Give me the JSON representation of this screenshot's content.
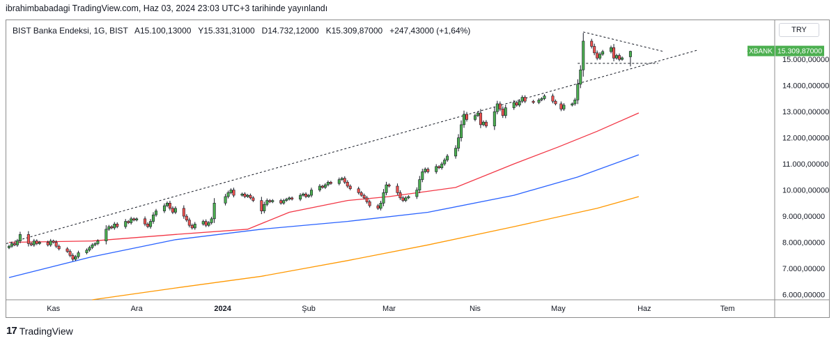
{
  "header": {
    "published_text": "ibrahimbabadagi TradingView.com, Haz 03, 2024 23:03 UTC+3 tarihinde yayınlandı"
  },
  "legend": {
    "symbol": "BIST Banka Endeksi, 1G, BIST",
    "open": "A15.100,13000",
    "high": "Y15.331,31000",
    "low": "D14.732,12000",
    "close": "K15.309,87000",
    "change": "+247,43000 (+1,64%)"
  },
  "currency_button": "TRY",
  "price_tag": {
    "symbol": "XBANK",
    "value": "15.309,87000",
    "color": "#4caf50"
  },
  "footer": {
    "logo_text": "TradingView"
  },
  "colors": {
    "up": "#4caf50",
    "down": "#ef5350",
    "ma_short": "#f23645",
    "ma_mid": "#2962ff",
    "ma_long": "#ff9800"
  },
  "chart_data": {
    "type": "candlestick",
    "ylim": [
      5800,
      16500
    ],
    "y_ticks": [
      6000,
      7000,
      8000,
      9000,
      10000,
      11000,
      12000,
      13000,
      14000,
      15000
    ],
    "y_tick_labels": [
      "6.000,00000",
      "7.000,00000",
      "8.000,00000",
      "9.000,00000",
      "10.000,00000",
      "11.000,00000",
      "12.000,00000",
      "13.000,00000",
      "14.000,00000",
      "15.000,00000"
    ],
    "x_labels": [
      {
        "label": "Kas",
        "date": "2023-11-01",
        "bold": false
      },
      {
        "label": "Ara",
        "date": "2023-12-01",
        "bold": false
      },
      {
        "label": "2024",
        "date": "2024-01-01",
        "bold": true
      },
      {
        "label": "Şub",
        "date": "2024-02-01",
        "bold": false
      },
      {
        "label": "Mar",
        "date": "2024-03-01",
        "bold": false
      },
      {
        "label": "Nis",
        "date": "2024-04-01",
        "bold": false
      },
      {
        "label": "May",
        "date": "2024-05-01",
        "bold": false
      },
      {
        "label": "Haz",
        "date": "2024-06-01",
        "bold": false
      },
      {
        "label": "Tem",
        "date": "2024-07-01",
        "bold": false
      }
    ],
    "x_range": [
      "2023-10-15",
      "2024-07-18"
    ],
    "close_series": [
      {
        "date": "2023-10-16",
        "c": 7850
      },
      {
        "date": "2023-10-17",
        "c": 7950
      },
      {
        "date": "2023-10-18",
        "c": 7900
      },
      {
        "date": "2023-10-19",
        "c": 8050
      },
      {
        "date": "2023-10-20",
        "c": 8300
      },
      {
        "date": "2023-10-23",
        "c": 7950
      },
      {
        "date": "2023-10-24",
        "c": 7900
      },
      {
        "date": "2023-10-25",
        "c": 8050
      },
      {
        "date": "2023-10-26",
        "c": 7950
      },
      {
        "date": "2023-10-27",
        "c": 8000
      },
      {
        "date": "2023-10-30",
        "c": 7900
      },
      {
        "date": "2023-10-31",
        "c": 8050
      },
      {
        "date": "2023-11-01",
        "c": 8000
      },
      {
        "date": "2023-11-02",
        "c": 7850
      },
      {
        "date": "2023-11-03",
        "c": 7750
      },
      {
        "date": "2023-11-06",
        "c": 7650
      },
      {
        "date": "2023-11-07",
        "c": 7500
      },
      {
        "date": "2023-11-08",
        "c": 7350
      },
      {
        "date": "2023-11-09",
        "c": 7450
      },
      {
        "date": "2023-11-10",
        "c": 7600
      },
      {
        "date": "2023-11-13",
        "c": 7700
      },
      {
        "date": "2023-11-14",
        "c": 7800
      },
      {
        "date": "2023-11-15",
        "c": 7900
      },
      {
        "date": "2023-11-16",
        "c": 7950
      },
      {
        "date": "2023-11-17",
        "c": 8050
      },
      {
        "date": "2023-11-20",
        "c": 8500
      },
      {
        "date": "2023-11-21",
        "c": 8600
      },
      {
        "date": "2023-11-22",
        "c": 8550
      },
      {
        "date": "2023-11-23",
        "c": 8700
      },
      {
        "date": "2023-11-24",
        "c": 8600
      },
      {
        "date": "2023-11-27",
        "c": 8800
      },
      {
        "date": "2023-11-28",
        "c": 8750
      },
      {
        "date": "2023-11-29",
        "c": 8900
      },
      {
        "date": "2023-11-30",
        "c": 8850
      },
      {
        "date": "2023-12-01",
        "c": 8900
      },
      {
        "date": "2023-12-04",
        "c": 8700
      },
      {
        "date": "2023-12-05",
        "c": 8600
      },
      {
        "date": "2023-12-06",
        "c": 8800
      },
      {
        "date": "2023-12-07",
        "c": 9050
      },
      {
        "date": "2023-12-08",
        "c": 9200
      },
      {
        "date": "2023-12-11",
        "c": 9400
      },
      {
        "date": "2023-12-12",
        "c": 9500
      },
      {
        "date": "2023-12-13",
        "c": 9300
      },
      {
        "date": "2023-12-14",
        "c": 9150
      },
      {
        "date": "2023-12-15",
        "c": 9300
      },
      {
        "date": "2023-12-18",
        "c": 9000
      },
      {
        "date": "2023-12-19",
        "c": 8850
      },
      {
        "date": "2023-12-20",
        "c": 8650
      },
      {
        "date": "2023-12-21",
        "c": 8550
      },
      {
        "date": "2023-12-22",
        "c": 8700
      },
      {
        "date": "2023-12-25",
        "c": 8800
      },
      {
        "date": "2023-12-26",
        "c": 8650
      },
      {
        "date": "2023-12-27",
        "c": 8750
      },
      {
        "date": "2023-12-28",
        "c": 8900
      },
      {
        "date": "2023-12-29",
        "c": 9500
      },
      {
        "date": "2024-01-02",
        "c": 9750
      },
      {
        "date": "2024-01-03",
        "c": 9900
      },
      {
        "date": "2024-01-04",
        "c": 10000
      },
      {
        "date": "2024-01-05",
        "c": 9800
      },
      {
        "date": "2024-01-08",
        "c": 9850
      },
      {
        "date": "2024-01-09",
        "c": 9750
      },
      {
        "date": "2024-01-10",
        "c": 9800
      },
      {
        "date": "2024-01-11",
        "c": 9700
      },
      {
        "date": "2024-01-12",
        "c": 9600
      },
      {
        "date": "2024-01-15",
        "c": 9200
      },
      {
        "date": "2024-01-16",
        "c": 9450
      },
      {
        "date": "2024-01-17",
        "c": 9600
      },
      {
        "date": "2024-01-18",
        "c": 9550
      },
      {
        "date": "2024-01-19",
        "c": 9600
      },
      {
        "date": "2024-01-22",
        "c": 9500
      },
      {
        "date": "2024-01-23",
        "c": 9600
      },
      {
        "date": "2024-01-24",
        "c": 9650
      },
      {
        "date": "2024-01-25",
        "c": 9700
      },
      {
        "date": "2024-01-26",
        "c": 9650
      },
      {
        "date": "2024-01-29",
        "c": 9800
      },
      {
        "date": "2024-01-30",
        "c": 9850
      },
      {
        "date": "2024-01-31",
        "c": 9750
      },
      {
        "date": "2024-02-01",
        "c": 9800
      },
      {
        "date": "2024-02-02",
        "c": 10000
      },
      {
        "date": "2024-02-05",
        "c": 10150
      },
      {
        "date": "2024-02-06",
        "c": 10100
      },
      {
        "date": "2024-02-07",
        "c": 10200
      },
      {
        "date": "2024-02-08",
        "c": 10300
      },
      {
        "date": "2024-02-09",
        "c": 10250
      },
      {
        "date": "2024-02-12",
        "c": 10400
      },
      {
        "date": "2024-02-13",
        "c": 10450
      },
      {
        "date": "2024-02-14",
        "c": 10300
      },
      {
        "date": "2024-02-15",
        "c": 10150
      },
      {
        "date": "2024-02-16",
        "c": 10050
      },
      {
        "date": "2024-02-19",
        "c": 9900
      },
      {
        "date": "2024-02-20",
        "c": 9800
      },
      {
        "date": "2024-02-21",
        "c": 9700
      },
      {
        "date": "2024-02-22",
        "c": 9550
      },
      {
        "date": "2024-02-23",
        "c": 9400
      },
      {
        "date": "2024-02-26",
        "c": 9300
      },
      {
        "date": "2024-02-27",
        "c": 9500
      },
      {
        "date": "2024-02-28",
        "c": 9900
      },
      {
        "date": "2024-02-29",
        "c": 10200
      },
      {
        "date": "2024-03-01",
        "c": 10150
      },
      {
        "date": "2024-03-04",
        "c": 9900
      },
      {
        "date": "2024-03-05",
        "c": 9700
      },
      {
        "date": "2024-03-06",
        "c": 9600
      },
      {
        "date": "2024-03-07",
        "c": 9700
      },
      {
        "date": "2024-03-08",
        "c": 9750
      },
      {
        "date": "2024-03-11",
        "c": 10000
      },
      {
        "date": "2024-03-12",
        "c": 10400
      },
      {
        "date": "2024-03-13",
        "c": 10700
      },
      {
        "date": "2024-03-14",
        "c": 10800
      },
      {
        "date": "2024-03-15",
        "c": 10700
      },
      {
        "date": "2024-03-18",
        "c": 10900
      },
      {
        "date": "2024-03-19",
        "c": 10850
      },
      {
        "date": "2024-03-20",
        "c": 11000
      },
      {
        "date": "2024-03-21",
        "c": 11150
      },
      {
        "date": "2024-03-22",
        "c": 11300
      },
      {
        "date": "2024-03-25",
        "c": 11600
      },
      {
        "date": "2024-03-26",
        "c": 12000
      },
      {
        "date": "2024-03-27",
        "c": 12500
      },
      {
        "date": "2024-03-28",
        "c": 12900
      },
      {
        "date": "2024-03-29",
        "c": 12700
      },
      {
        "date": "2024-04-01",
        "c": 12850
      },
      {
        "date": "2024-04-02",
        "c": 12950
      },
      {
        "date": "2024-04-03",
        "c": 12500
      },
      {
        "date": "2024-04-04",
        "c": 12600
      },
      {
        "date": "2024-04-05",
        "c": 12450
      },
      {
        "date": "2024-04-08",
        "c": 13000
      },
      {
        "date": "2024-04-09",
        "c": 13300
      },
      {
        "date": "2024-04-10",
        "c": 13100
      },
      {
        "date": "2024-04-11",
        "c": 12850
      },
      {
        "date": "2024-04-12",
        "c": 13150
      },
      {
        "date": "2024-04-15",
        "c": 13350
      },
      {
        "date": "2024-04-16",
        "c": 13250
      },
      {
        "date": "2024-04-17",
        "c": 13400
      },
      {
        "date": "2024-04-18",
        "c": 13550
      },
      {
        "date": "2024-04-19",
        "c": 13400
      },
      {
        "date": "2024-04-22",
        "c": 13350
      },
      {
        "date": "2024-04-24",
        "c": 13450
      },
      {
        "date": "2024-04-25",
        "c": 13500
      },
      {
        "date": "2024-04-26",
        "c": 13600
      },
      {
        "date": "2024-04-29",
        "c": 13400
      },
      {
        "date": "2024-04-30",
        "c": 13300
      },
      {
        "date": "2024-05-02",
        "c": 13100
      },
      {
        "date": "2024-05-03",
        "c": 13250
      },
      {
        "date": "2024-05-06",
        "c": 13300
      },
      {
        "date": "2024-05-07",
        "c": 13450
      },
      {
        "date": "2024-05-08",
        "c": 14050
      },
      {
        "date": "2024-05-09",
        "c": 14600
      },
      {
        "date": "2024-05-10",
        "c": 15700
      },
      {
        "date": "2024-05-13",
        "c": 15500
      },
      {
        "date": "2024-05-14",
        "c": 15250
      },
      {
        "date": "2024-05-15",
        "c": 15050
      },
      {
        "date": "2024-05-16",
        "c": 15200
      },
      {
        "date": "2024-05-17",
        "c": 15300
      },
      {
        "date": "2024-05-20",
        "c": 15450
      },
      {
        "date": "2024-05-21",
        "c": 15050
      },
      {
        "date": "2024-05-22",
        "c": 15150
      },
      {
        "date": "2024-05-23",
        "c": 15000
      },
      {
        "date": "2024-05-24",
        "c": 15060
      },
      {
        "date": "2024-05-27",
        "c": 15310
      }
    ],
    "last": {
      "o": 15100.13,
      "h": 15331.31,
      "l": 14732.12,
      "c": 15309.87
    },
    "moving_averages": [
      {
        "name": "",
        "color": "#f23645",
        "points": [
          {
            "date": "2023-10-16",
            "v": 8000
          },
          {
            "date": "2023-11-15",
            "v": 8050
          },
          {
            "date": "2023-12-15",
            "v": 8300
          },
          {
            "date": "2024-01-10",
            "v": 8500
          },
          {
            "date": "2024-01-25",
            "v": 9150
          },
          {
            "date": "2024-02-15",
            "v": 9600
          },
          {
            "date": "2024-03-01",
            "v": 9750
          },
          {
            "date": "2024-03-25",
            "v": 10100
          },
          {
            "date": "2024-04-15",
            "v": 11000
          },
          {
            "date": "2024-05-01",
            "v": 11650
          },
          {
            "date": "2024-05-15",
            "v": 12250
          },
          {
            "date": "2024-05-30",
            "v": 12950
          }
        ]
      },
      {
        "name": "",
        "color": "#2962ff",
        "points": [
          {
            "date": "2023-10-16",
            "v": 6650
          },
          {
            "date": "2023-11-15",
            "v": 7450
          },
          {
            "date": "2023-12-15",
            "v": 8100
          },
          {
            "date": "2024-01-15",
            "v": 8500
          },
          {
            "date": "2024-02-15",
            "v": 8800
          },
          {
            "date": "2024-03-15",
            "v": 9150
          },
          {
            "date": "2024-04-15",
            "v": 9800
          },
          {
            "date": "2024-05-08",
            "v": 10500
          },
          {
            "date": "2024-05-30",
            "v": 11350
          }
        ]
      },
      {
        "name": "",
        "color": "#ff9800",
        "points": [
          {
            "date": "2023-11-15",
            "v": 5800
          },
          {
            "date": "2023-12-15",
            "v": 6250
          },
          {
            "date": "2024-01-15",
            "v": 6700
          },
          {
            "date": "2024-02-15",
            "v": 7300
          },
          {
            "date": "2024-03-15",
            "v": 7900
          },
          {
            "date": "2024-04-15",
            "v": 8600
          },
          {
            "date": "2024-05-15",
            "v": 9300
          },
          {
            "date": "2024-05-30",
            "v": 9750
          }
        ]
      }
    ],
    "trendlines": [
      {
        "from": {
          "date": "2023-10-15",
          "v": 7950
        },
        "to": {
          "date": "2024-06-20",
          "v": 15350
        }
      },
      {
        "from": {
          "date": "2024-05-10",
          "v": 16050
        },
        "to": {
          "date": "2024-06-08",
          "v": 15300
        }
      },
      {
        "from": {
          "date": "2024-05-08",
          "v": 14850
        },
        "to": {
          "date": "2024-06-06",
          "v": 14850
        }
      }
    ]
  }
}
